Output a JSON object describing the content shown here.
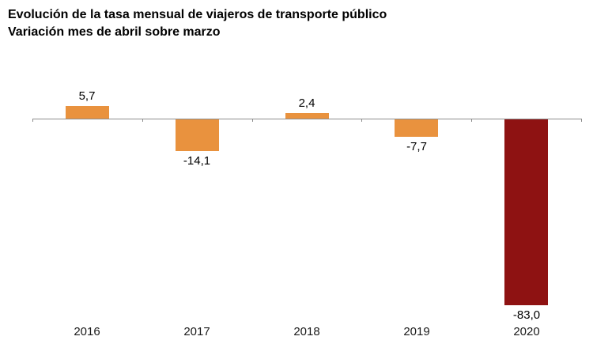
{
  "chart_data": {
    "type": "bar",
    "title": "Evolución de la tasa mensual de viajeros de transporte público",
    "subtitle": "Variación mes de abril sobre marzo",
    "categories": [
      "2016",
      "2017",
      "2018",
      "2019",
      "2020"
    ],
    "values": [
      5.7,
      -14.1,
      2.4,
      -7.7,
      -83.0
    ],
    "value_labels": [
      "5,7",
      "-14,1",
      "2,4",
      "-7,7",
      "-83,0"
    ],
    "bar_colors": [
      "#E9923E",
      "#E9923E",
      "#E9923E",
      "#E9923E",
      "#8E1212"
    ],
    "axis_color": "#8C8C8C",
    "text_color": "#000000",
    "xlabel": "",
    "ylabel": "",
    "ylim": [
      -90,
      10
    ],
    "grid": false,
    "legend": false,
    "baseline": 0
  }
}
